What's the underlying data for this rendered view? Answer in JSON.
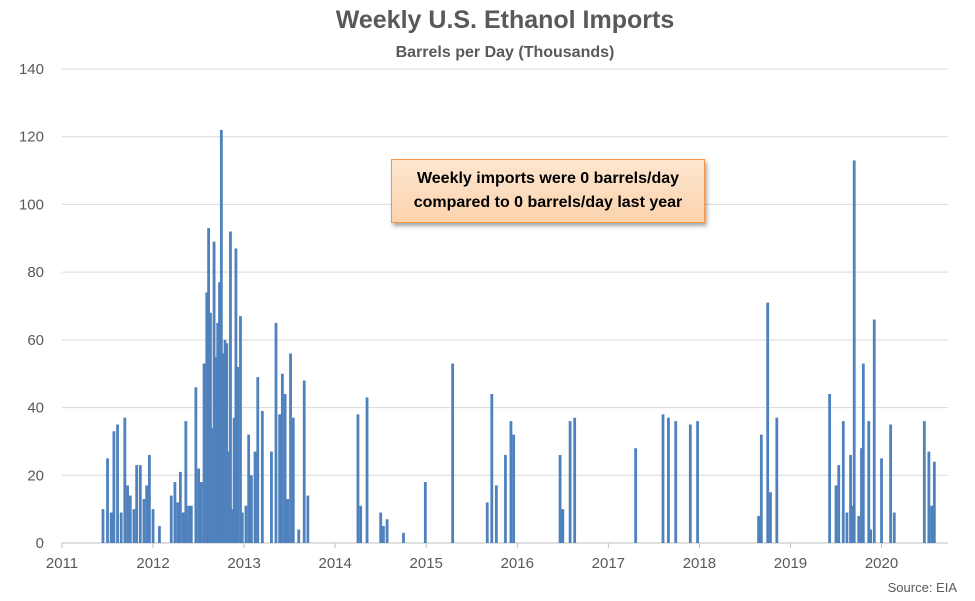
{
  "chart_data": {
    "type": "bar",
    "title": "Weekly U.S. Ethanol Imports",
    "subtitle": "Barrels per Day (Thousands)",
    "xlabel": "",
    "ylabel": "",
    "ylim": [
      0,
      140
    ],
    "yticks": [
      0,
      20,
      40,
      60,
      80,
      100,
      120,
      140
    ],
    "xlim": [
      2011.0,
      2020.6
    ],
    "xticks": [
      "2011",
      "2012",
      "2013",
      "2014",
      "2015",
      "2016",
      "2017",
      "2018",
      "2019",
      "2020"
    ],
    "grid": "horizontal",
    "bar_color": "#4f81bd",
    "annotation": "Weekly imports were 0 barrels/day compared to 0 barrels/day last year",
    "source": "Source: EIA",
    "points": [
      [
        2011.45,
        10
      ],
      [
        2011.5,
        25
      ],
      [
        2011.54,
        9
      ],
      [
        2011.57,
        33
      ],
      [
        2011.61,
        35
      ],
      [
        2011.65,
        9
      ],
      [
        2011.69,
        37
      ],
      [
        2011.72,
        17
      ],
      [
        2011.75,
        14
      ],
      [
        2011.79,
        10
      ],
      [
        2011.82,
        23
      ],
      [
        2011.86,
        23
      ],
      [
        2011.9,
        13
      ],
      [
        2011.93,
        17
      ],
      [
        2011.96,
        26
      ],
      [
        2012.0,
        10
      ],
      [
        2012.07,
        5
      ],
      [
        2012.2,
        14
      ],
      [
        2012.24,
        18
      ],
      [
        2012.27,
        12
      ],
      [
        2012.3,
        21
      ],
      [
        2012.33,
        9
      ],
      [
        2012.36,
        36
      ],
      [
        2012.39,
        11
      ],
      [
        2012.42,
        11
      ],
      [
        2012.47,
        46
      ],
      [
        2012.5,
        22
      ],
      [
        2012.53,
        18
      ],
      [
        2012.56,
        53
      ],
      [
        2012.59,
        74
      ],
      [
        2012.61,
        93
      ],
      [
        2012.63,
        68
      ],
      [
        2012.65,
        34
      ],
      [
        2012.67,
        89
      ],
      [
        2012.69,
        55
      ],
      [
        2012.71,
        65
      ],
      [
        2012.73,
        77
      ],
      [
        2012.75,
        122
      ],
      [
        2012.77,
        56
      ],
      [
        2012.79,
        60
      ],
      [
        2012.81,
        59
      ],
      [
        2012.83,
        27
      ],
      [
        2012.85,
        92
      ],
      [
        2012.87,
        10
      ],
      [
        2012.89,
        37
      ],
      [
        2012.91,
        87
      ],
      [
        2012.93,
        52
      ],
      [
        2012.96,
        67
      ],
      [
        2012.98,
        9
      ],
      [
        2013.02,
        11
      ],
      [
        2013.05,
        32
      ],
      [
        2013.08,
        20
      ],
      [
        2013.12,
        27
      ],
      [
        2013.15,
        49
      ],
      [
        2013.2,
        39
      ],
      [
        2013.3,
        27
      ],
      [
        2013.35,
        65
      ],
      [
        2013.39,
        38
      ],
      [
        2013.42,
        50
      ],
      [
        2013.45,
        44
      ],
      [
        2013.48,
        13
      ],
      [
        2013.51,
        56
      ],
      [
        2013.54,
        37
      ],
      [
        2013.6,
        4
      ],
      [
        2013.66,
        48
      ],
      [
        2013.7,
        14
      ],
      [
        2014.25,
        38
      ],
      [
        2014.28,
        11
      ],
      [
        2014.35,
        43
      ],
      [
        2014.5,
        9
      ],
      [
        2014.53,
        5
      ],
      [
        2014.57,
        7
      ],
      [
        2014.75,
        3
      ],
      [
        2014.99,
        18
      ],
      [
        2015.29,
        53
      ],
      [
        2015.67,
        12
      ],
      [
        2015.72,
        44
      ],
      [
        2015.77,
        17
      ],
      [
        2015.87,
        26
      ],
      [
        2015.93,
        36
      ],
      [
        2015.96,
        32
      ],
      [
        2016.47,
        26
      ],
      [
        2016.5,
        10
      ],
      [
        2016.58,
        36
      ],
      [
        2016.63,
        37
      ],
      [
        2017.3,
        28
      ],
      [
        2017.6,
        38
      ],
      [
        2017.66,
        37
      ],
      [
        2017.74,
        36
      ],
      [
        2017.9,
        35
      ],
      [
        2017.98,
        36
      ],
      [
        2018.65,
        8
      ],
      [
        2018.68,
        32
      ],
      [
        2018.75,
        71
      ],
      [
        2018.78,
        15
      ],
      [
        2018.85,
        37
      ],
      [
        2019.43,
        44
      ],
      [
        2019.5,
        17
      ],
      [
        2019.53,
        23
      ],
      [
        2019.58,
        36
      ],
      [
        2019.62,
        9
      ],
      [
        2019.66,
        26
      ],
      [
        2019.68,
        11
      ],
      [
        2019.7,
        113
      ],
      [
        2019.75,
        8
      ],
      [
        2019.78,
        28
      ],
      [
        2019.8,
        53
      ],
      [
        2019.86,
        36
      ],
      [
        2019.88,
        4
      ],
      [
        2019.92,
        66
      ],
      [
        2020.0,
        25
      ],
      [
        2020.1,
        35
      ],
      [
        2020.14,
        9
      ],
      [
        2020.47,
        36
      ],
      [
        2020.52,
        27
      ],
      [
        2020.55,
        11
      ],
      [
        2020.58,
        24
      ]
    ]
  }
}
